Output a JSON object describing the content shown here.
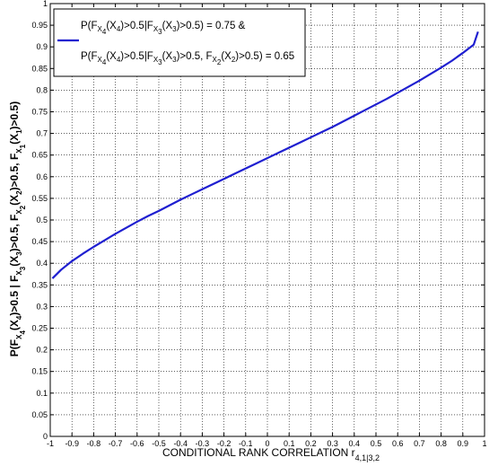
{
  "chart_data": {
    "type": "line",
    "xlabel": "CONDITIONAL RANK CORRELATION r",
    "xlabel_sub": "4,1|3,2",
    "ylabel_parts": [
      {
        "t": "P(F"
      },
      {
        "t": "X",
        "sub": 1
      },
      {
        "t": "4",
        "sub": 2
      },
      {
        "t": "(X"
      },
      {
        "t": "4",
        "sub": 1
      },
      {
        "t": ")>0.5 | F"
      },
      {
        "t": "X",
        "sub": 1
      },
      {
        "t": "3",
        "sub": 2
      },
      {
        "t": "(X"
      },
      {
        "t": "3",
        "sub": 1
      },
      {
        "t": ")>0.5, F"
      },
      {
        "t": "X",
        "sub": 1
      },
      {
        "t": "2",
        "sub": 2
      },
      {
        "t": "(X"
      },
      {
        "t": "2",
        "sub": 1
      },
      {
        "t": ")>0.5, F"
      },
      {
        "t": "X",
        "sub": 1
      },
      {
        "t": "1",
        "sub": 2
      },
      {
        "t": "(X"
      },
      {
        "t": "1",
        "sub": 1
      },
      {
        "t": ")>0.5)"
      }
    ],
    "xlim": [
      -1,
      1
    ],
    "ylim": [
      0,
      1
    ],
    "xticks": [
      -1,
      -0.9,
      -0.8,
      -0.7,
      -0.6,
      -0.5,
      -0.4,
      -0.3,
      -0.2,
      -0.1,
      0,
      0.1,
      0.2,
      0.3,
      0.4,
      0.5,
      0.6,
      0.7,
      0.8,
      0.9,
      1
    ],
    "xtick_labels": [
      "-1",
      "-0.9",
      "-0.8",
      "-0.7",
      "-0.6",
      "-0.5",
      "-0.4",
      "-0.3",
      "-0.2",
      "-0.1",
      "0",
      "0.1",
      "0.2",
      "0.3",
      "0.4",
      "0.5",
      "0.6",
      "0.7",
      "0.8",
      "0.9",
      "1"
    ],
    "yticks": [
      0,
      0.05,
      0.1,
      0.15,
      0.2,
      0.25,
      0.3,
      0.35,
      0.4,
      0.45,
      0.5,
      0.55,
      0.6,
      0.65,
      0.7,
      0.75,
      0.8,
      0.85,
      0.9,
      0.95,
      1
    ],
    "ytick_labels": [
      "0",
      "0.05",
      "0.1",
      "0.15",
      "0.2",
      "0.25",
      "0.3",
      "0.35",
      "0.4",
      "0.45",
      "0.5",
      "0.55",
      "0.6",
      "0.65",
      "0.7",
      "0.75",
      "0.8",
      "0.85",
      "0.9",
      "0.95",
      "1"
    ],
    "grid": true,
    "grid_style": "dotted",
    "legend_position": "top-left",
    "legend_lines": [
      [
        {
          "t": "P(F"
        },
        {
          "t": "X",
          "sub": 1
        },
        {
          "t": "4",
          "sub": 2
        },
        {
          "t": "(X"
        },
        {
          "t": "4",
          "sub": 1
        },
        {
          "t": ")>0.5|F"
        },
        {
          "t": "X",
          "sub": 1
        },
        {
          "t": "3",
          "sub": 2
        },
        {
          "t": "(X"
        },
        {
          "t": "3",
          "sub": 1
        },
        {
          "t": ")>0.5)  =  0.75    &"
        }
      ],
      [
        {
          "t": "P(F"
        },
        {
          "t": "X",
          "sub": 1
        },
        {
          "t": "4",
          "sub": 2
        },
        {
          "t": "(X"
        },
        {
          "t": "4",
          "sub": 1
        },
        {
          "t": ")>0.5|F"
        },
        {
          "t": "X",
          "sub": 1
        },
        {
          "t": "3",
          "sub": 2
        },
        {
          "t": "(X"
        },
        {
          "t": "3",
          "sub": 1
        },
        {
          "t": ")>0.5, F"
        },
        {
          "t": "X",
          "sub": 1
        },
        {
          "t": "2",
          "sub": 2
        },
        {
          "t": "(X"
        },
        {
          "t": "2",
          "sub": 1
        },
        {
          "t": ")>0.5)  =  0.65"
        }
      ]
    ],
    "series": [
      {
        "color": "#1f1fd0",
        "x": [
          -0.99,
          -0.95,
          -0.9,
          -0.85,
          -0.8,
          -0.75,
          -0.7,
          -0.65,
          -0.6,
          -0.55,
          -0.5,
          -0.45,
          -0.4,
          -0.35,
          -0.3,
          -0.25,
          -0.2,
          -0.15,
          -0.1,
          -0.05,
          0,
          0.05,
          0.1,
          0.15,
          0.2,
          0.25,
          0.3,
          0.35,
          0.4,
          0.45,
          0.5,
          0.55,
          0.6,
          0.65,
          0.7,
          0.75,
          0.8,
          0.85,
          0.9,
          0.95,
          0.97
        ],
        "y": [
          0.365,
          0.385,
          0.405,
          0.422,
          0.438,
          0.453,
          0.468,
          0.482,
          0.496,
          0.509,
          0.521,
          0.534,
          0.547,
          0.559,
          0.571,
          0.583,
          0.595,
          0.607,
          0.619,
          0.631,
          0.643,
          0.655,
          0.667,
          0.679,
          0.691,
          0.703,
          0.715,
          0.728,
          0.741,
          0.754,
          0.767,
          0.78,
          0.794,
          0.808,
          0.822,
          0.837,
          0.852,
          0.868,
          0.886,
          0.905,
          0.935
        ]
      }
    ]
  }
}
